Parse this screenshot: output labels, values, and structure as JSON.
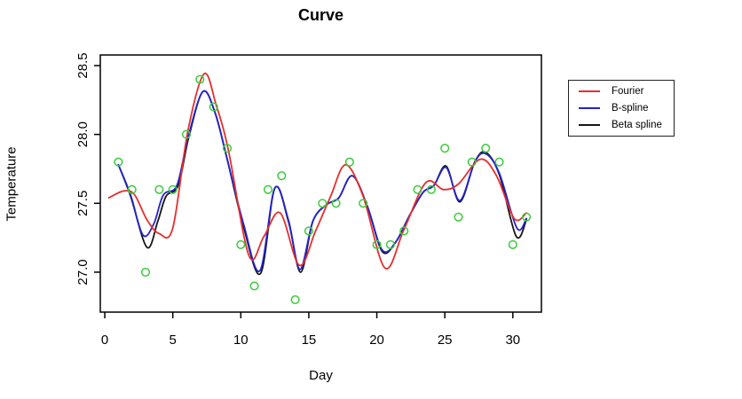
{
  "chart_data": {
    "type": "line",
    "title": "Curve",
    "xlabel": "Day",
    "ylabel": "Temperature",
    "xlim": [
      -0.33,
      32.1
    ],
    "ylim": [
      26.71,
      28.577
    ],
    "grid": false,
    "x_ticks": [
      0,
      5,
      10,
      15,
      20,
      25,
      30
    ],
    "x_tick_labels": [
      "0",
      "5",
      "10",
      "15",
      "20",
      "25",
      "30"
    ],
    "y_ticks": [
      27.0,
      27.5,
      28.0,
      28.5
    ],
    "y_tick_labels": [
      "27.0",
      "27.5",
      "28.0",
      "28.5"
    ],
    "legend": {
      "position": "outside-right",
      "border": true
    },
    "points": {
      "marker": "open-circle",
      "color": "#3bcb3b",
      "days": [
        1,
        2,
        3,
        4,
        5,
        6,
        7,
        8,
        9,
        10,
        11,
        12,
        13,
        14,
        15,
        16,
        17,
        18,
        19,
        20,
        21,
        22,
        23,
        24,
        25,
        26,
        27,
        28,
        29,
        30,
        31
      ],
      "values": [
        27.8,
        27.6,
        27.0,
        27.6,
        27.6,
        28.0,
        28.4,
        28.2,
        27.9,
        27.2,
        26.9,
        27.6,
        27.7,
        26.8,
        27.3,
        27.5,
        27.5,
        27.8,
        27.5,
        27.2,
        27.2,
        27.3,
        27.6,
        27.6,
        27.9,
        27.4,
        27.8,
        27.9,
        27.8,
        27.2,
        27.4
      ]
    },
    "series": [
      {
        "name": "Fourier",
        "color": "#e62e2e",
        "knots": [
          [
            0.3,
            27.54
          ],
          [
            1.4,
            27.59
          ],
          [
            2.2,
            27.56
          ],
          [
            3.1,
            27.38
          ],
          [
            4.0,
            27.28
          ],
          [
            5.0,
            27.32
          ],
          [
            6.1,
            28.02
          ],
          [
            7.3,
            28.44
          ],
          [
            8.2,
            28.21
          ],
          [
            9.1,
            27.88
          ],
          [
            10.6,
            27.12
          ],
          [
            11.7,
            27.26
          ],
          [
            12.9,
            27.43
          ],
          [
            14.3,
            27.05
          ],
          [
            15.5,
            27.3
          ],
          [
            16.6,
            27.55
          ],
          [
            17.7,
            27.78
          ],
          [
            19.0,
            27.55
          ],
          [
            20.6,
            27.03
          ],
          [
            22.0,
            27.31
          ],
          [
            23.6,
            27.65
          ],
          [
            24.9,
            27.6
          ],
          [
            26.0,
            27.64
          ],
          [
            27.6,
            27.82
          ],
          [
            28.8,
            27.7
          ],
          [
            30.1,
            27.39
          ],
          [
            31.0,
            27.43
          ]
        ]
      },
      {
        "name": "B-spline",
        "color": "#2323cc",
        "knots": [
          [
            1.0,
            27.78
          ],
          [
            1.9,
            27.56
          ],
          [
            2.8,
            27.27
          ],
          [
            3.6,
            27.35
          ],
          [
            4.3,
            27.56
          ],
          [
            5.3,
            27.63
          ],
          [
            6.1,
            27.97
          ],
          [
            7.2,
            28.31
          ],
          [
            8.1,
            28.16
          ],
          [
            9.0,
            27.82
          ],
          [
            10.2,
            27.35
          ],
          [
            11.4,
            27.01
          ],
          [
            12.5,
            27.61
          ],
          [
            13.5,
            27.38
          ],
          [
            14.35,
            27.02
          ],
          [
            15.3,
            27.37
          ],
          [
            16.3,
            27.49
          ],
          [
            17.2,
            27.54
          ],
          [
            18.2,
            27.7
          ],
          [
            19.3,
            27.48
          ],
          [
            20.4,
            27.16
          ],
          [
            21.4,
            27.22
          ],
          [
            22.4,
            27.41
          ],
          [
            23.4,
            27.58
          ],
          [
            24.2,
            27.63
          ],
          [
            25.1,
            27.76
          ],
          [
            26.1,
            27.52
          ],
          [
            27.2,
            27.8
          ],
          [
            28.0,
            27.86
          ],
          [
            29.0,
            27.72
          ],
          [
            30.3,
            27.32
          ],
          [
            31.0,
            27.39
          ]
        ]
      },
      {
        "name": "Beta spline",
        "color": "#161616",
        "knots": [
          [
            1.0,
            27.78
          ],
          [
            1.9,
            27.55
          ],
          [
            3.1,
            27.18
          ],
          [
            3.9,
            27.37
          ],
          [
            4.5,
            27.55
          ],
          [
            5.4,
            27.63
          ],
          [
            6.15,
            27.97
          ],
          [
            7.2,
            28.31
          ],
          [
            8.1,
            28.16
          ],
          [
            9.0,
            27.82
          ],
          [
            10.2,
            27.33
          ],
          [
            11.45,
            26.99
          ],
          [
            12.5,
            27.61
          ],
          [
            13.5,
            27.37
          ],
          [
            14.4,
            27.0
          ],
          [
            15.3,
            27.37
          ],
          [
            16.3,
            27.49
          ],
          [
            17.2,
            27.54
          ],
          [
            18.2,
            27.7
          ],
          [
            19.3,
            27.48
          ],
          [
            20.4,
            27.15
          ],
          [
            21.4,
            27.22
          ],
          [
            22.4,
            27.41
          ],
          [
            23.4,
            27.58
          ],
          [
            24.2,
            27.63
          ],
          [
            25.1,
            27.77
          ],
          [
            26.1,
            27.51
          ],
          [
            27.2,
            27.8
          ],
          [
            28.0,
            27.87
          ],
          [
            29.0,
            27.71
          ],
          [
            30.25,
            27.26
          ],
          [
            31.0,
            27.38
          ]
        ]
      }
    ]
  }
}
